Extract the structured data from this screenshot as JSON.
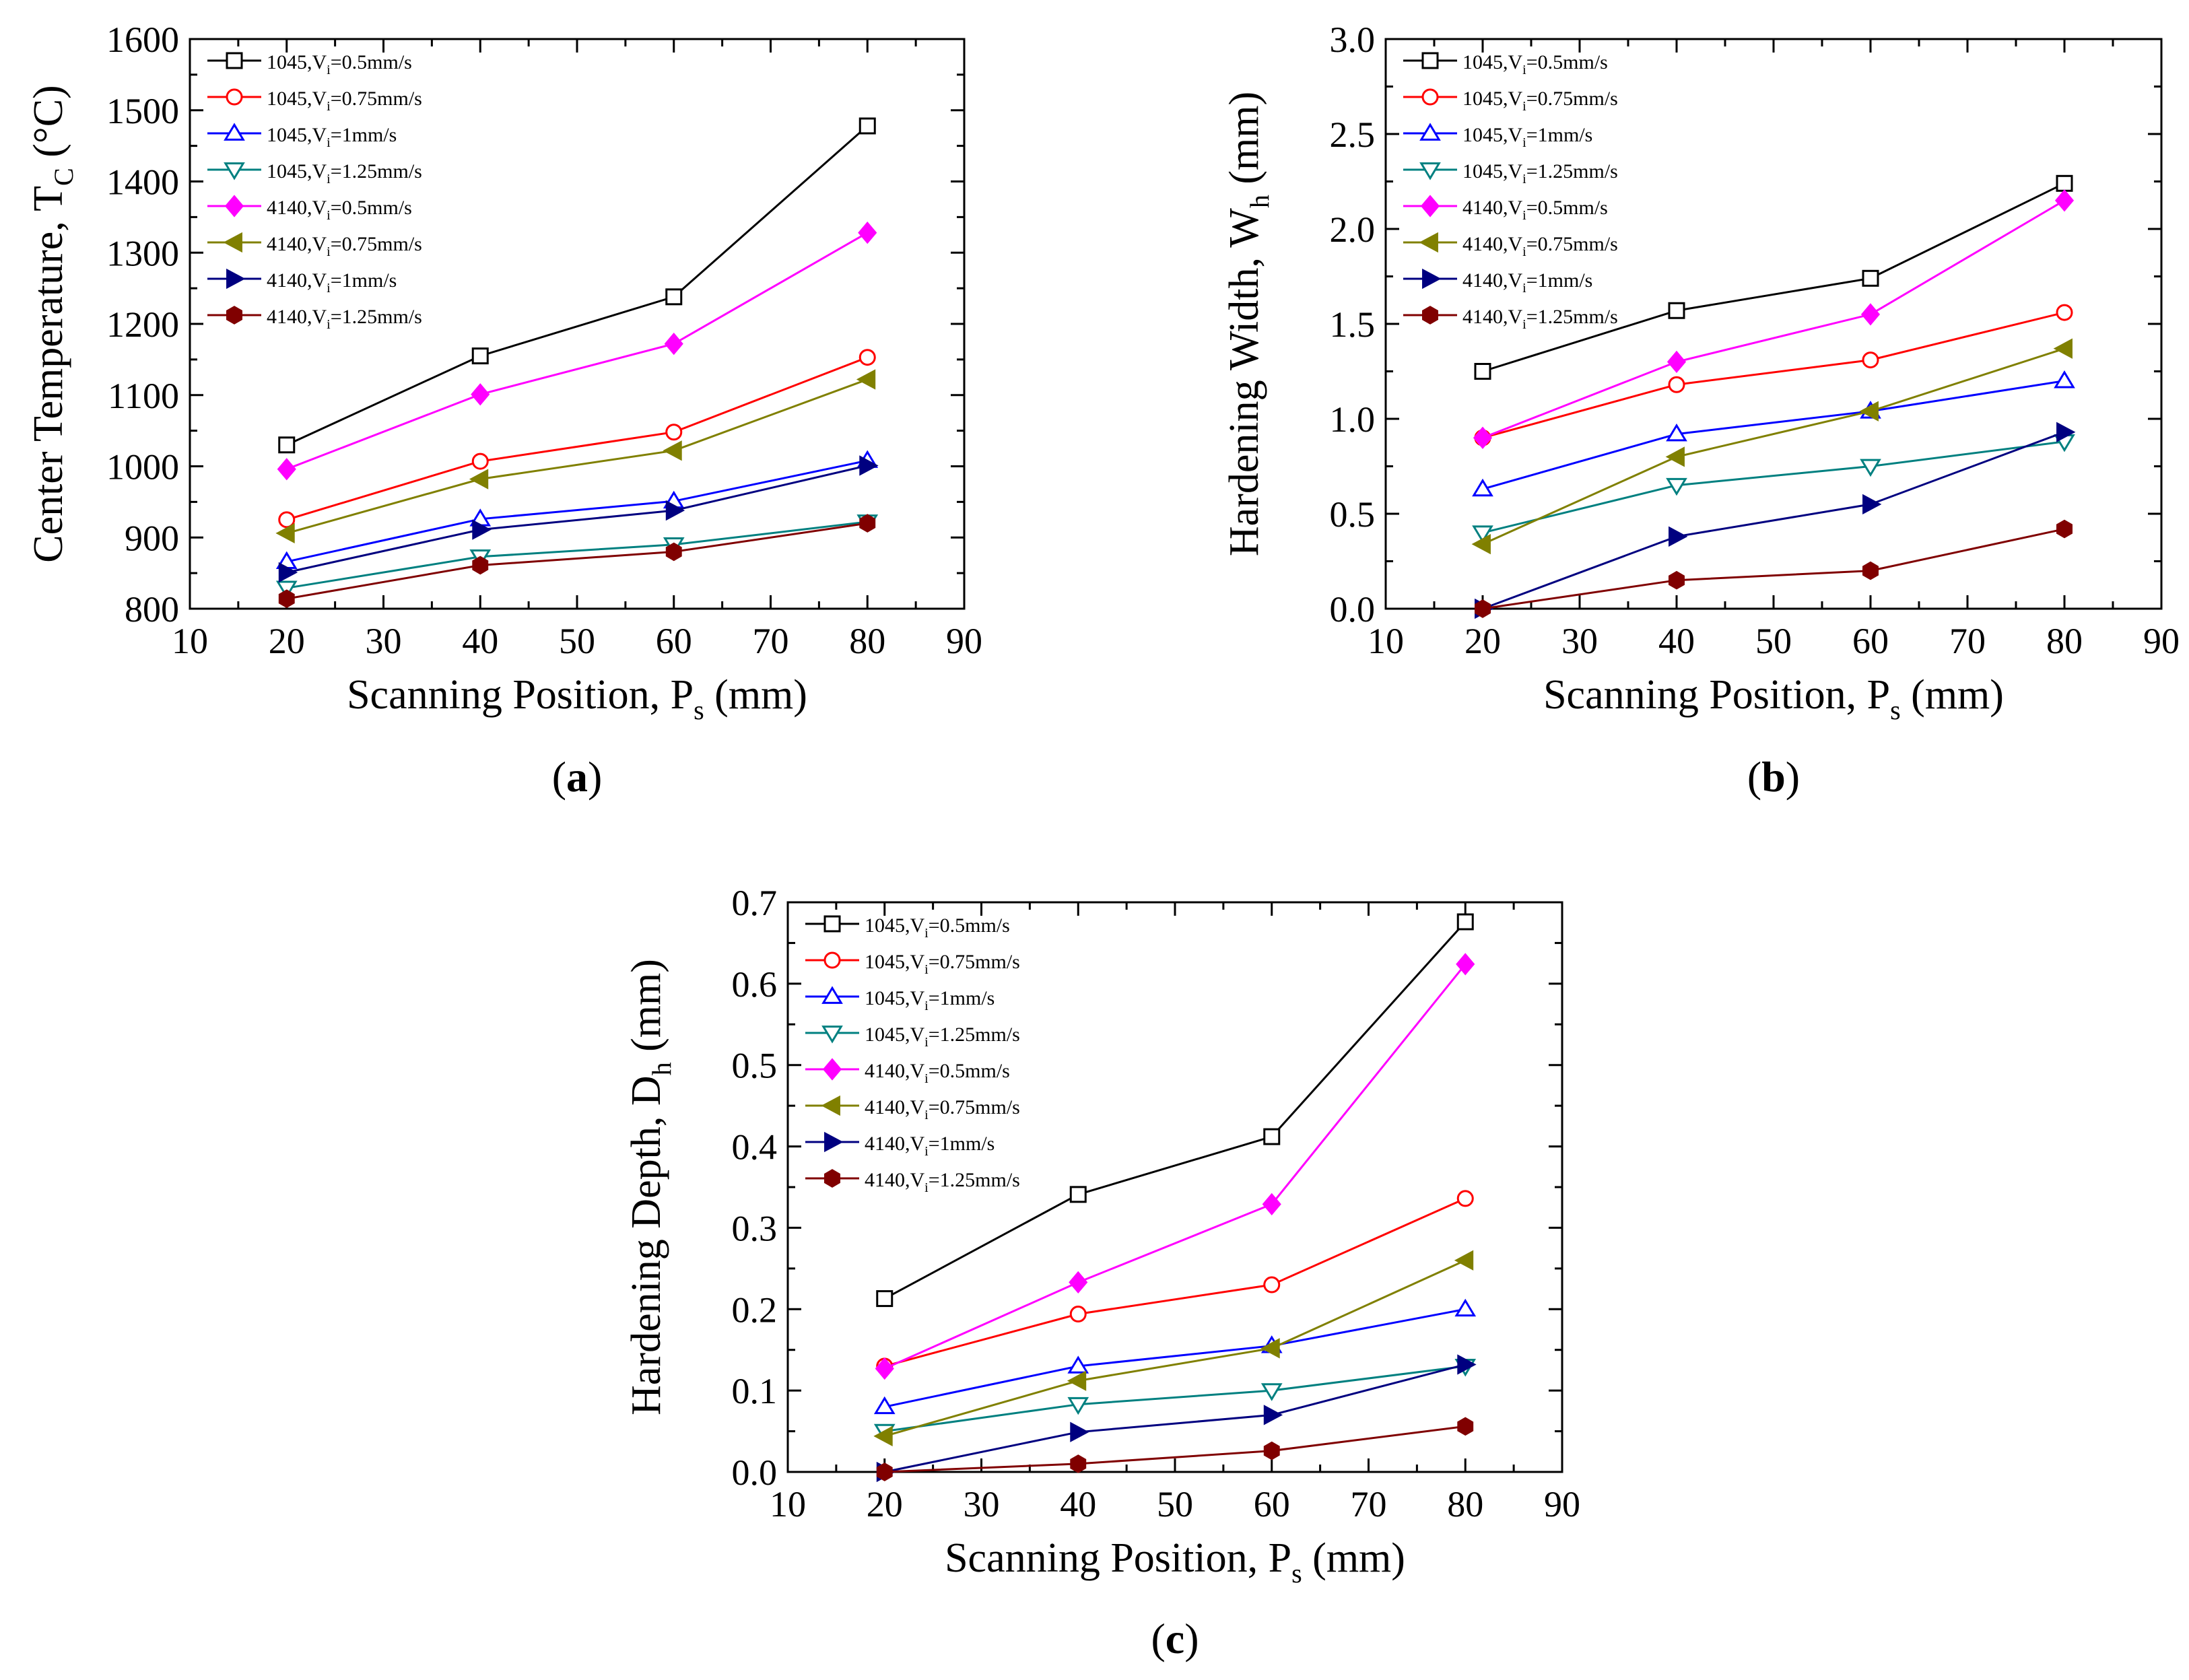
{
  "figure": {
    "background": "#ffffff"
  },
  "series_styles": [
    {
      "color": "#000000",
      "marker": "square",
      "filled": false
    },
    {
      "color": "#ff0000",
      "marker": "circle",
      "filled": false
    },
    {
      "color": "#0000ff",
      "marker": "triangle-up",
      "filled": false
    },
    {
      "color": "#008080",
      "marker": "triangle-down",
      "filled": false
    },
    {
      "color": "#ff00ff",
      "marker": "diamond",
      "filled": true
    },
    {
      "color": "#808000",
      "marker": "triangle-left",
      "filled": true
    },
    {
      "color": "#000080",
      "marker": "triangle-right",
      "filled": true
    },
    {
      "color": "#800000",
      "marker": "hexagon",
      "filled": true
    }
  ],
  "chart_data": [
    {
      "type": "line",
      "panel_label": "a",
      "ylabel_main": "Center Temperature, T",
      "ylabel_sub": "C",
      "ylabel_tail": " (°C)",
      "xlabel_main": "Scanning Position, P",
      "xlabel_sub": "s",
      "xlabel_tail": " (mm)",
      "xlim": [
        10,
        90
      ],
      "ylim": [
        800,
        1600
      ],
      "xticks": [
        10,
        20,
        30,
        40,
        50,
        60,
        70,
        80,
        90
      ],
      "yticks": [
        800,
        900,
        1000,
        1100,
        1200,
        1300,
        1400,
        1500,
        1600
      ],
      "ytick_labels": [
        "800",
        "900",
        "1000",
        "1100",
        "1200",
        "1300",
        "1400",
        "1500",
        "1600"
      ],
      "x": [
        20,
        40,
        60,
        80
      ],
      "series": [
        {
          "name": "1045,V",
          "sub": "i",
          "tail": "=0.5mm/s",
          "values": [
            1030,
            1155,
            1238,
            1478
          ]
        },
        {
          "name": "1045,V",
          "sub": "i",
          "tail": "=0.75mm/s",
          "values": [
            925,
            1007,
            1048,
            1153
          ]
        },
        {
          "name": "1045,V",
          "sub": "i",
          "tail": "=1mm/s",
          "values": [
            866,
            926,
            951,
            1008
          ]
        },
        {
          "name": "1045,V",
          "sub": "i",
          "tail": "=1.25mm/s",
          "values": [
            829,
            873,
            890,
            922
          ]
        },
        {
          "name": "4140,V",
          "sub": "i",
          "tail": "=0.5mm/s",
          "values": [
            996,
            1101,
            1172,
            1328
          ]
        },
        {
          "name": "4140,V",
          "sub": "i",
          "tail": "=0.75mm/s",
          "values": [
            906,
            982,
            1022,
            1122
          ]
        },
        {
          "name": "4140,V",
          "sub": "i",
          "tail": "=1mm/s",
          "values": [
            851,
            911,
            938,
            1001
          ]
        },
        {
          "name": "4140,V",
          "sub": "i",
          "tail": "=1.25mm/s",
          "values": [
            814,
            861,
            880,
            920
          ]
        }
      ],
      "legend_position": "top-left"
    },
    {
      "type": "line",
      "panel_label": "b",
      "ylabel_main": "Hardening Width, W",
      "ylabel_sub": "h",
      "ylabel_tail": " (mm)",
      "xlabel_main": "Scanning Position, P",
      "xlabel_sub": "s",
      "xlabel_tail": " (mm)",
      "xlim": [
        10,
        90
      ],
      "ylim": [
        0,
        3
      ],
      "xticks": [
        10,
        20,
        30,
        40,
        50,
        60,
        70,
        80,
        90
      ],
      "yticks": [
        0,
        0.5,
        1,
        1.5,
        2,
        2.5,
        3
      ],
      "ytick_labels": [
        "0.0",
        "0.5",
        "1.0",
        "1.5",
        "2.0",
        "2.5",
        "3.0"
      ],
      "x": [
        20,
        40,
        60,
        80
      ],
      "series": [
        {
          "name": "1045,V",
          "sub": "i",
          "tail": "=0.5mm/s",
          "values": [
            1.25,
            1.57,
            1.74,
            2.24
          ]
        },
        {
          "name": "1045,V",
          "sub": "i",
          "tail": "=0.75mm/s",
          "values": [
            0.9,
            1.18,
            1.31,
            1.56
          ]
        },
        {
          "name": "1045,V",
          "sub": "i",
          "tail": "=1mm/s",
          "values": [
            0.63,
            0.92,
            1.04,
            1.2
          ]
        },
        {
          "name": "1045,V",
          "sub": "i",
          "tail": "=1.25mm/s",
          "values": [
            0.4,
            0.65,
            0.75,
            0.88
          ]
        },
        {
          "name": "4140,V",
          "sub": "i",
          "tail": "=0.5mm/s",
          "values": [
            0.9,
            1.3,
            1.55,
            2.15
          ]
        },
        {
          "name": "4140,V",
          "sub": "i",
          "tail": "=0.75mm/s",
          "values": [
            0.34,
            0.8,
            1.04,
            1.37
          ]
        },
        {
          "name": "4140,V",
          "sub": "i",
          "tail": "=1mm/s",
          "values": [
            0,
            0.38,
            0.55,
            0.93
          ]
        },
        {
          "name": "4140,V",
          "sub": "i",
          "tail": "=1.25mm/s",
          "values": [
            0,
            0.15,
            0.2,
            0.42
          ]
        }
      ],
      "legend_position": "top-left"
    },
    {
      "type": "line",
      "panel_label": "c",
      "ylabel_main": "Hardening Depth, D",
      "ylabel_sub": "h",
      "ylabel_tail": " (mm)",
      "xlabel_main": "Scanning Position, P",
      "xlabel_sub": "s",
      "xlabel_tail": " (mm)",
      "xlim": [
        10,
        90
      ],
      "ylim": [
        0,
        0.7
      ],
      "xticks": [
        10,
        20,
        30,
        40,
        50,
        60,
        70,
        80,
        90
      ],
      "yticks": [
        0,
        0.1,
        0.2,
        0.3,
        0.4,
        0.5,
        0.6,
        0.7
      ],
      "ytick_labels": [
        "0.0",
        "0.1",
        "0.2",
        "0.3",
        "0.4",
        "0.5",
        "0.6",
        "0.7"
      ],
      "x": [
        20,
        40,
        60,
        80
      ],
      "series": [
        {
          "name": "1045,V",
          "sub": "i",
          "tail": "=0.5mm/s",
          "values": [
            0.213,
            0.341,
            0.412,
            0.676
          ]
        },
        {
          "name": "1045,V",
          "sub": "i",
          "tail": "=0.75mm/s",
          "values": [
            0.13,
            0.194,
            0.23,
            0.336
          ]
        },
        {
          "name": "1045,V",
          "sub": "i",
          "tail": "=1mm/s",
          "values": [
            0.08,
            0.13,
            0.155,
            0.2
          ]
        },
        {
          "name": "1045,V",
          "sub": "i",
          "tail": "=1.25mm/s",
          "values": [
            0.05,
            0.083,
            0.1,
            0.13
          ]
        },
        {
          "name": "4140,V",
          "sub": "i",
          "tail": "=0.5mm/s",
          "values": [
            0.127,
            0.233,
            0.329,
            0.624
          ]
        },
        {
          "name": "4140,V",
          "sub": "i",
          "tail": "=0.75mm/s",
          "values": [
            0.044,
            0.112,
            0.152,
            0.26
          ]
        },
        {
          "name": "4140,V",
          "sub": "i",
          "tail": "=1mm/s",
          "values": [
            0,
            0.049,
            0.07,
            0.132
          ]
        },
        {
          "name": "4140,V",
          "sub": "i",
          "tail": "=1.25mm/s",
          "values": [
            0,
            0.01,
            0.026,
            0.056
          ]
        }
      ],
      "legend_position": "top-left"
    }
  ]
}
